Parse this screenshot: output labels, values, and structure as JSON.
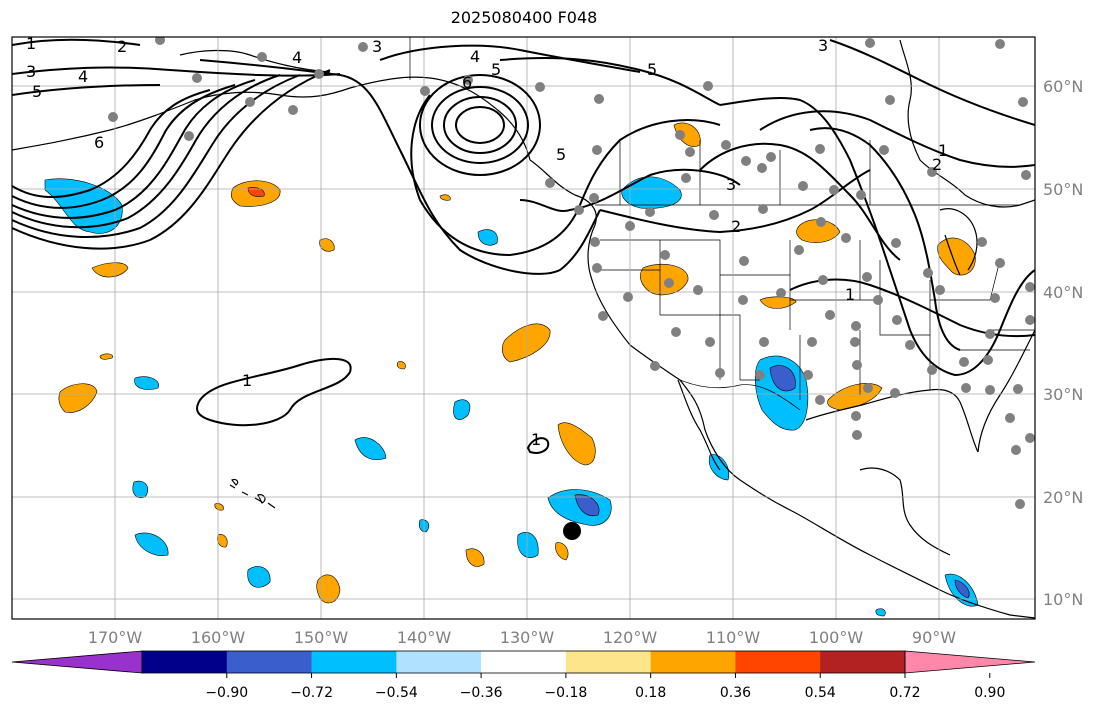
{
  "title": "2025080400 F048",
  "map": {
    "projection": "PlateCarree",
    "lon_range": [
      -180,
      -80
    ],
    "lat_range": [
      8,
      65
    ],
    "lon_labels": [
      "170°W",
      "160°W",
      "150°W",
      "140°W",
      "130°W",
      "120°W",
      "110°W",
      "100°W",
      "90°W"
    ],
    "lat_labels": [
      "60°N",
      "50°N",
      "40°N",
      "30°N",
      "20°N",
      "10°N"
    ],
    "contour_labels": [
      "1",
      "2",
      "3",
      "4",
      "5",
      "6",
      "3",
      "4",
      "5",
      "6",
      "5",
      "3",
      "4",
      "2",
      "3",
      "5",
      "1",
      "1",
      "1",
      "2",
      "1"
    ],
    "tropical_storm_marker": "storm-center",
    "station_marker_color": "#808080"
  },
  "colorbar": {
    "ticks": [
      "−0.90",
      "−0.72",
      "−0.54",
      "−0.36",
      "−0.18",
      "0.18",
      "0.36",
      "0.54",
      "0.72",
      "0.90"
    ],
    "colors": [
      "#9932cc",
      "#00008b",
      "#3a5fcd",
      "#00bfff",
      "#b0e2ff",
      "#ffffff",
      "#fde68a",
      "#ffa500",
      "#ff4500",
      "#b22222",
      "#ff88aa"
    ]
  }
}
